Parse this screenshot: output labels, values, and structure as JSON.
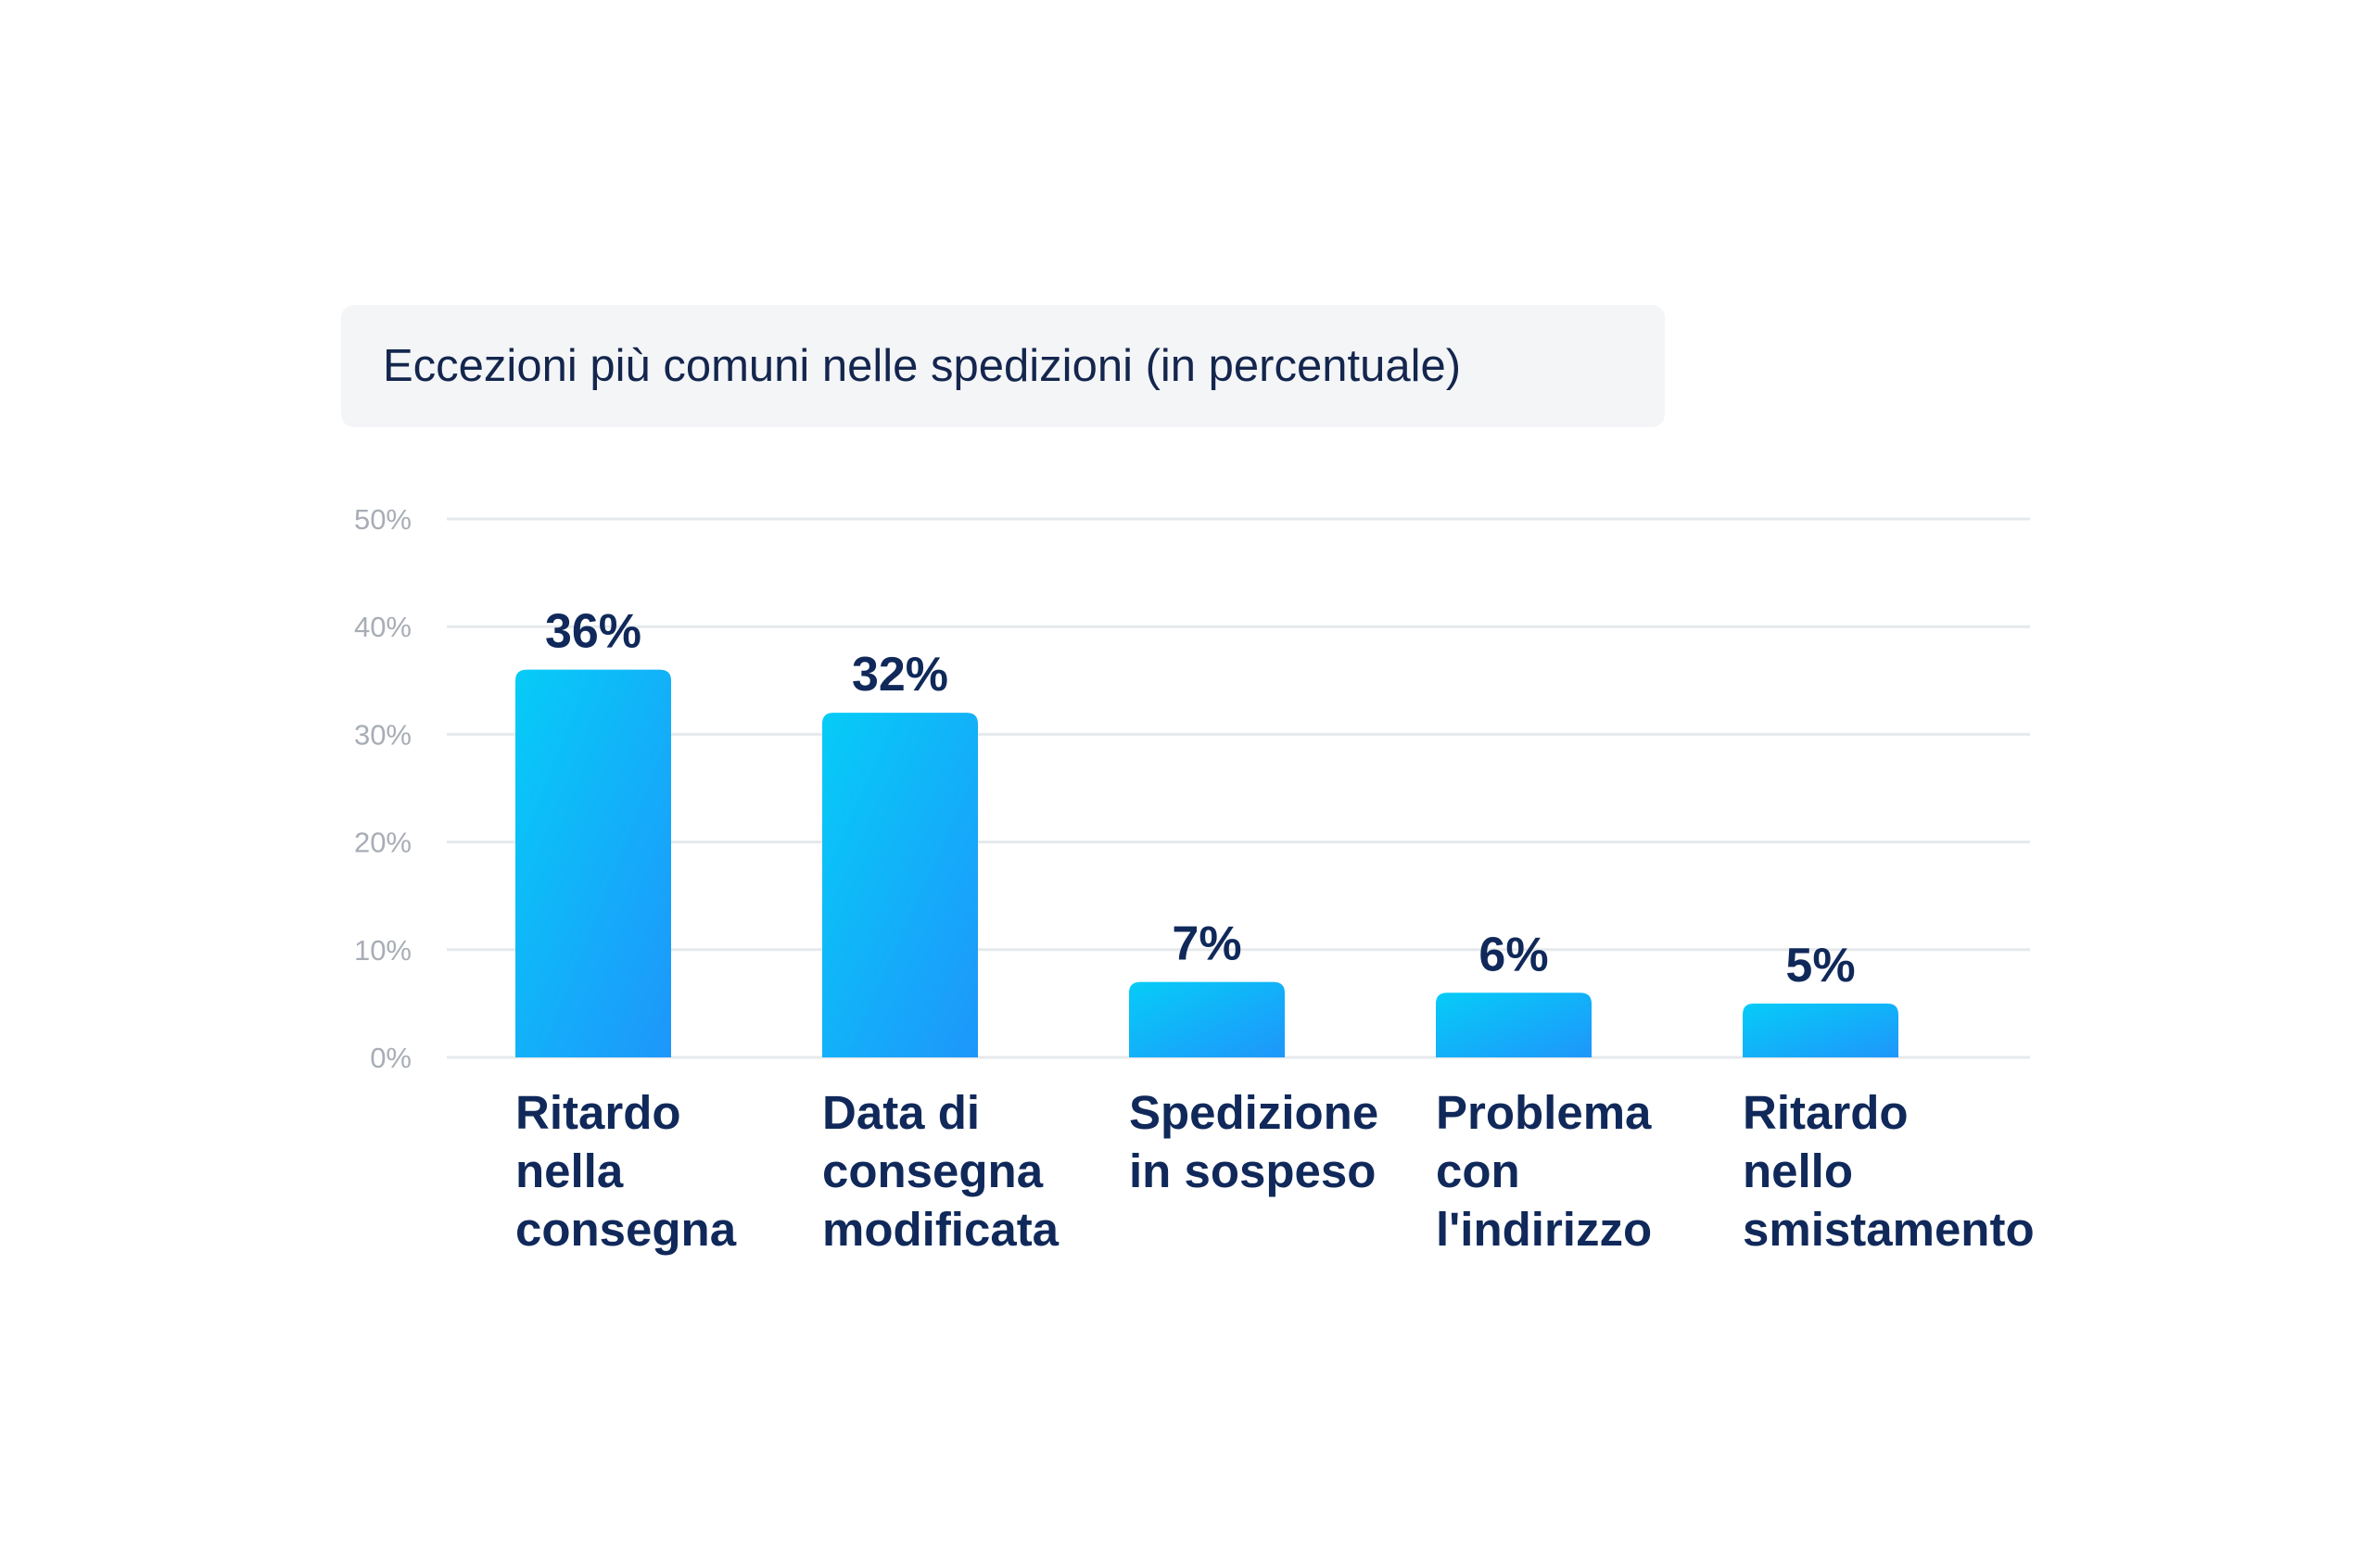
{
  "chart_data": {
    "type": "bar",
    "title": "Eccezioni più comuni nelle spedizioni (in percentuale)",
    "categories": [
      [
        "Ritardo",
        "nella",
        "consegna"
      ],
      [
        "Data di",
        "consegna",
        "modificata"
      ],
      [
        "Spedizione",
        "in sospeso"
      ],
      [
        "Problema",
        "con",
        "l'indirizzo"
      ],
      [
        "Ritardo",
        "nello",
        "smistamento"
      ]
    ],
    "values": [
      36,
      32,
      7,
      6,
      5
    ],
    "value_labels": [
      "36%",
      "32%",
      "7%",
      "6%",
      "5%"
    ],
    "ylim": [
      0,
      50
    ],
    "yticks": [
      0,
      10,
      20,
      30,
      40,
      50
    ],
    "ytick_labels": [
      "0%",
      "10%",
      "20%",
      "30%",
      "40%",
      "50%"
    ],
    "grid": true,
    "legend": "none",
    "colors": {
      "bar_top": "#06ccf7",
      "bar_bottom": "#1e96fb",
      "grid": "#e6e9ec",
      "text": "#10295a",
      "tick": "#a8adb6",
      "title_bg": "#f4f5f7"
    }
  }
}
